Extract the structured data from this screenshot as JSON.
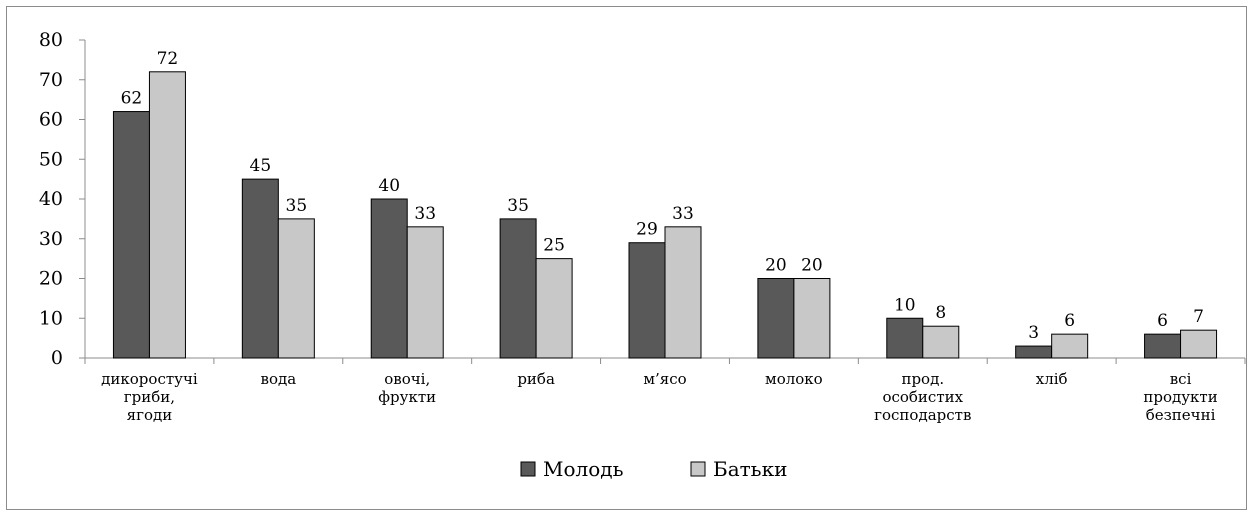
{
  "chart_data": {
    "type": "bar",
    "categories": [
      [
        "дикоростучі",
        "гриби,",
        "ягоди"
      ],
      [
        "вода"
      ],
      [
        "овочі,",
        "фрукти"
      ],
      [
        "риба"
      ],
      [
        "м’ясо"
      ],
      [
        "молоко"
      ],
      [
        "прод.",
        "особистих",
        "господарств"
      ],
      [
        "хліб"
      ],
      [
        "всі",
        "продукти",
        "безпечні"
      ]
    ],
    "series": [
      {
        "name": "Молодь",
        "values": [
          62,
          45,
          40,
          35,
          29,
          20,
          10,
          3,
          6
        ],
        "color": "#595959"
      },
      {
        "name": "Батьки",
        "values": [
          72,
          35,
          33,
          25,
          33,
          20,
          8,
          6,
          7
        ],
        "color": "#c8c8c8"
      }
    ],
    "ylim": [
      0,
      80
    ],
    "yticks": [
      0,
      10,
      20,
      30,
      40,
      50,
      60,
      70,
      80
    ],
    "grid": false,
    "legend_position": "bottom",
    "data_labels": true
  }
}
